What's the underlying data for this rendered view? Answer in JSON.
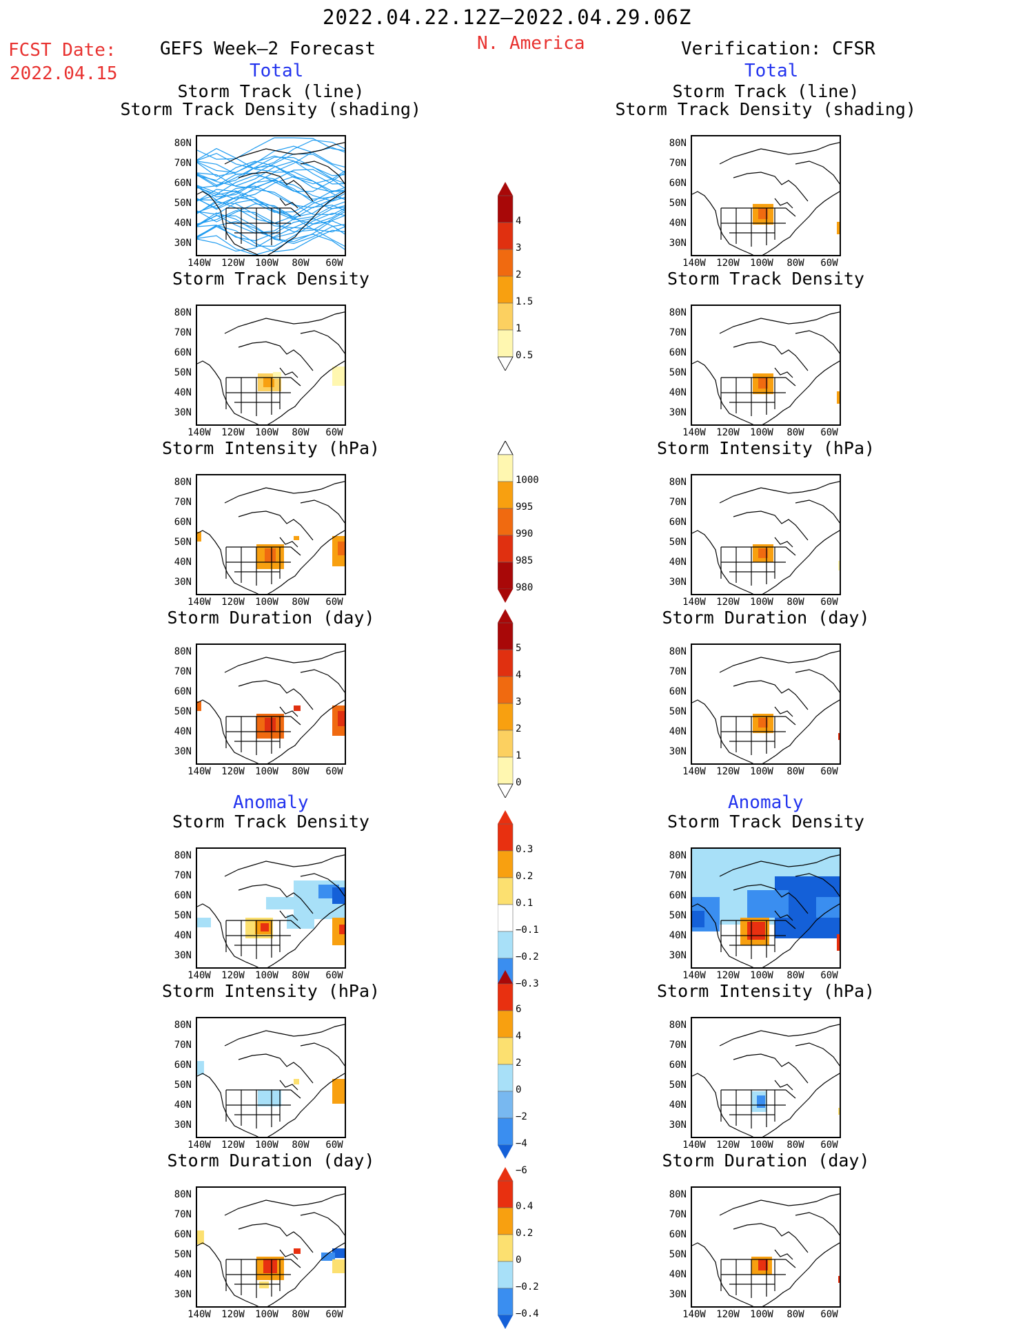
{
  "header": {
    "date_range": "2022.04.22.12Z–2022.04.29.06Z",
    "region": "N. America",
    "fcst_date_label": "FCST Date:",
    "fcst_date_value": "2022.04.15",
    "left_title": "GEFS Week–2 Forecast",
    "right_title": "Verification: CFSR"
  },
  "sections": {
    "total": "Total",
    "anomaly": "Anomaly"
  },
  "panel_titles": {
    "track_line": "Storm Track (line)",
    "track_shading": "Storm Track Density (shading)",
    "density": "Storm Track Density",
    "intensity": "Storm Intensity (hPa)",
    "duration": "Storm Duration (day)"
  },
  "axes": {
    "lat_labels": [
      "80N",
      "70N",
      "60N",
      "50N",
      "40N",
      "30N"
    ],
    "lon_labels": [
      "140W",
      "120W",
      "100W",
      "80W",
      "60W"
    ]
  },
  "colorbars": {
    "total_density": {
      "labels": [
        "4",
        "3",
        "2",
        "1.5",
        "1",
        "0.5"
      ]
    },
    "total_intensity": {
      "labels": [
        "1000",
        "995",
        "990",
        "985",
        "980"
      ]
    },
    "total_duration": {
      "labels": [
        "5",
        "4",
        "3",
        "2",
        "1",
        "0"
      ]
    },
    "anom_density": {
      "labels": [
        "0.3",
        "0.2",
        "0.1",
        "−0.1",
        "−0.2",
        "−0.3"
      ]
    },
    "anom_intensity": {
      "labels": [
        "6",
        "4",
        "2",
        "0",
        "−2",
        "−4",
        "−6"
      ]
    },
    "anom_duration": {
      "labels": [
        "0.4",
        "0.2",
        "0",
        "−0.2",
        "−0.4"
      ]
    }
  },
  "colors": {
    "header_red": "#e8312f",
    "section_blue": "#2233ee",
    "track_line": "#1e9bf0",
    "warm_scale": [
      "#fff7b0",
      "#fcd060",
      "#f8a010",
      "#f06a10",
      "#e03010",
      "#a80808"
    ],
    "anom_scale": [
      "#1460d8",
      "#3a8ef0",
      "#a8e0f8",
      "#ffffff",
      "#fce070",
      "#f8a010",
      "#e83010"
    ]
  }
}
